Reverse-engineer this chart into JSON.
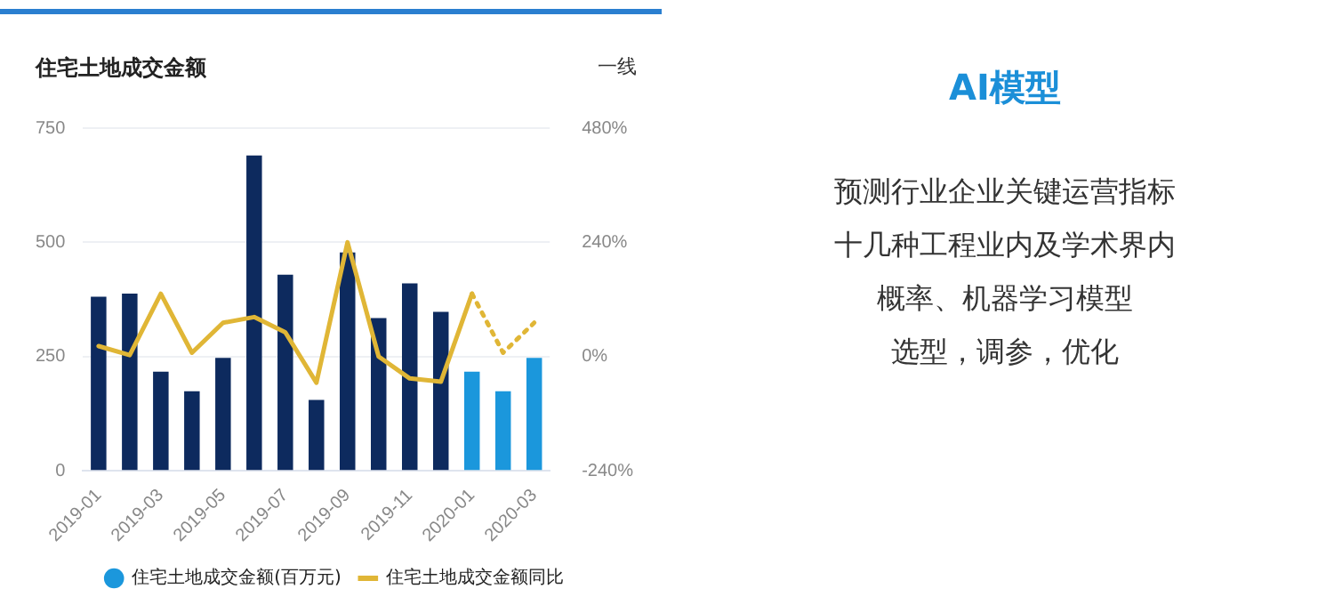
{
  "chart_data": [
    {
      "type": "bar",
      "title": "住宅土地成交金额",
      "subtitle": "一线",
      "categories": [
        "2019-01",
        null,
        "2019-03",
        null,
        "2019-05",
        null,
        "2019-07",
        null,
        "2019-09",
        null,
        "2019-11",
        null,
        "2020-01",
        null,
        "2020-03"
      ],
      "series": [
        {
          "name": "住宅土地成交金额(百万元)",
          "type": "bar",
          "color": "#1b97dc",
          "colors": [
            "#0d2a5e",
            "#0d2a5e",
            "#0d2a5e",
            "#0d2a5e",
            "#0d2a5e",
            "#0d2a5e",
            "#0d2a5e",
            "#0d2a5e",
            "#0d2a5e",
            "#0d2a5e",
            "#0d2a5e",
            "#0d2a5e",
            "#1b97dc",
            "#1b97dc",
            "#1b97dc"
          ],
          "values": [
            381,
            388,
            217,
            174,
            247,
            690,
            429,
            155,
            478,
            334,
            410,
            348,
            217,
            174,
            247
          ]
        },
        {
          "name": "住宅土地成交金额同比",
          "type": "line",
          "axis": "y2",
          "color": "#e0b636",
          "line_style": "solid",
          "values": [
            22,
            3,
            132,
            8,
            71,
            83,
            51,
            -55,
            240,
            0,
            -46,
            -53,
            132,
            null,
            null
          ]
        },
        {
          "type": "line",
          "axis": "y2",
          "color": "#e0b636",
          "line_style": "dotted",
          "values": [
            null,
            null,
            null,
            null,
            null,
            null,
            null,
            null,
            null,
            null,
            null,
            null,
            132,
            8,
            71
          ]
        }
      ],
      "ylim": [
        0,
        750
      ],
      "yticks": [
        0,
        250,
        500,
        750
      ],
      "y2lim": [
        -240,
        480
      ],
      "y2ticks": [
        {
          "value": -240,
          "label": "-240%"
        },
        {
          "value": 0,
          "label": "0%"
        },
        {
          "value": 240,
          "label": "240%"
        },
        {
          "value": 480,
          "label": "480%"
        }
      ],
      "grid": "y",
      "legend": "bottom",
      "marker": "none"
    },
    {
      "type": "other",
      "title": "AI模型",
      "annotations": [
        "预测行业企业关键运营指标",
        "十几种工程业内及学术界内",
        "概率、机器学习模型",
        "选型，调参，优化"
      ]
    }
  ]
}
